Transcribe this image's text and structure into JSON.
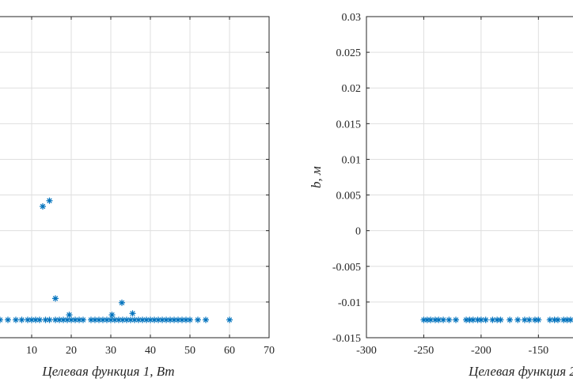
{
  "chart_data": [
    {
      "type": "scatter",
      "xlabel": "Целевая функция 1, Вт",
      "ylabel": "",
      "xlim": [
        -2,
        70
      ],
      "ylim": [
        -0.015,
        0.03
      ],
      "x_ticks": [
        "0",
        "10",
        "20",
        "30",
        "40",
        "50",
        "60",
        "70"
      ],
      "x_tick_values": [
        0,
        10,
        20,
        30,
        40,
        50,
        60,
        70
      ],
      "y_tick_values": [
        -0.015,
        -0.01,
        -0.005,
        0,
        0.005,
        0.01,
        0.015,
        0.02,
        0.025,
        0.03
      ],
      "grid": true,
      "marker": "*",
      "color": "#0072BD",
      "series": [
        {
          "x": [
            0.5,
            2,
            4,
            6,
            7.5,
            9,
            10,
            11,
            12,
            13.5,
            14.5,
            16,
            17,
            18,
            19,
            20,
            21,
            22,
            23,
            25,
            26,
            27,
            28,
            29,
            30,
            31,
            32,
            33,
            34,
            35,
            36,
            37,
            38,
            39,
            40,
            41,
            42,
            43,
            44,
            45,
            46,
            47,
            48,
            49,
            50,
            52,
            54,
            60,
            12.8,
            14.5,
            16,
            19.5,
            30.3,
            32.8,
            35.5
          ],
          "y": [
            -0.0125,
            -0.0125,
            -0.0125,
            -0.0125,
            -0.0125,
            -0.0125,
            -0.0125,
            -0.0125,
            -0.0125,
            -0.0125,
            -0.0125,
            -0.0125,
            -0.0125,
            -0.0125,
            -0.0125,
            -0.0125,
            -0.0125,
            -0.0125,
            -0.0125,
            -0.0125,
            -0.0125,
            -0.0125,
            -0.0125,
            -0.0125,
            -0.0125,
            -0.0125,
            -0.0125,
            -0.0125,
            -0.0125,
            -0.0125,
            -0.0125,
            -0.0125,
            -0.0125,
            -0.0125,
            -0.0125,
            -0.0125,
            -0.0125,
            -0.0125,
            -0.0125,
            -0.0125,
            -0.0125,
            -0.0125,
            -0.0125,
            -0.0125,
            -0.0125,
            -0.0125,
            -0.0125,
            -0.0125,
            0.0034,
            0.0042,
            -0.0095,
            -0.0118,
            -0.0118,
            -0.0101,
            -0.0116
          ]
        }
      ]
    },
    {
      "type": "scatter",
      "xlabel": "Целевая функция 2",
      "ylabel": "b, м",
      "xlim": [
        -300,
        -95
      ],
      "ylim": [
        -0.015,
        0.03
      ],
      "x_ticks": [
        "-300",
        "-250",
        "-200",
        "-150",
        "-100"
      ],
      "x_tick_values": [
        -300,
        -250,
        -200,
        -150,
        -100
      ],
      "y_ticks": [
        "-0.015",
        "-0.01",
        "-0.005",
        "0",
        "0.005",
        "0.01",
        "0.015",
        "0.02",
        "0.025",
        "0.03"
      ],
      "y_tick_values": [
        -0.015,
        -0.01,
        -0.005,
        0,
        0.005,
        0.01,
        0.015,
        0.02,
        0.025,
        0.03
      ],
      "grid": true,
      "marker": "*",
      "color": "#0072BD",
      "series": [
        {
          "x": [
            -250,
            -247,
            -244,
            -240,
            -237,
            -233,
            -228,
            -222,
            -213,
            -210,
            -207,
            -203,
            -200,
            -196,
            -190,
            -186,
            -183,
            -175,
            -168,
            -162,
            -158,
            -153,
            -150,
            -140,
            -136,
            -133,
            -128,
            -125,
            -122,
            -98
          ],
          "y": [
            -0.0125,
            -0.0125,
            -0.0125,
            -0.0125,
            -0.0125,
            -0.0125,
            -0.0125,
            -0.0125,
            -0.0125,
            -0.0125,
            -0.0125,
            -0.0125,
            -0.0125,
            -0.0125,
            -0.0125,
            -0.0125,
            -0.0125,
            -0.0125,
            -0.0125,
            -0.0125,
            -0.0125,
            -0.0125,
            -0.0125,
            -0.0125,
            -0.0125,
            -0.0125,
            -0.0125,
            -0.0125,
            -0.0125,
            -0.0125
          ]
        }
      ]
    }
  ]
}
